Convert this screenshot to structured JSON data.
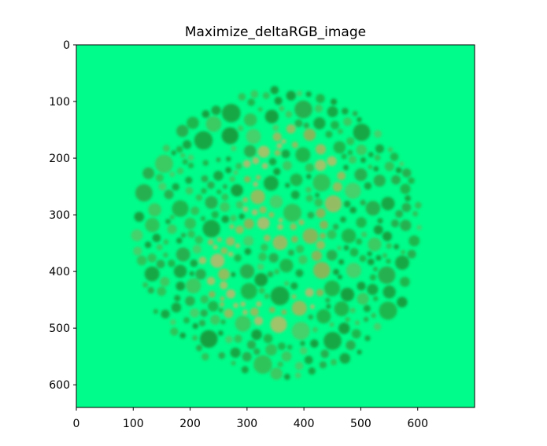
{
  "chart_data": {
    "type": "image",
    "title": "Maximize_deltaRGB_image",
    "xlim": [
      0,
      700
    ],
    "ylim": [
      640,
      0
    ],
    "xticks": [
      0,
      100,
      200,
      300,
      400,
      500,
      600
    ],
    "yticks": [
      0,
      100,
      200,
      300,
      400,
      500,
      600
    ]
  }
}
